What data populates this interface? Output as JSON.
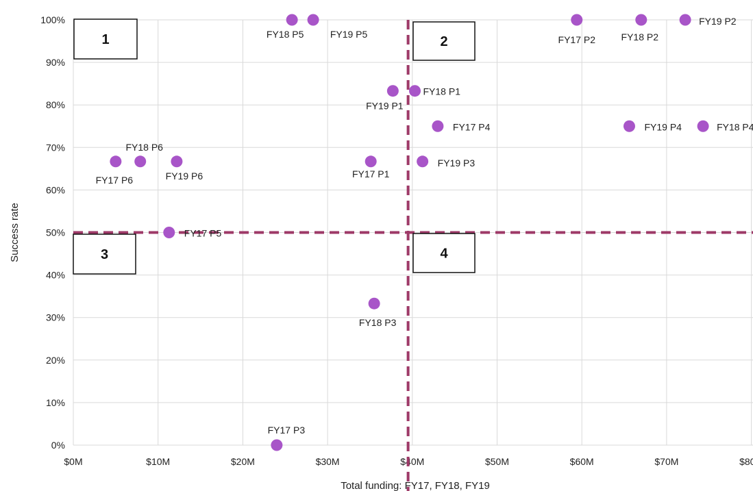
{
  "chart_data": {
    "type": "scatter",
    "xlabel": "Total funding: FY17, FY18, FY19",
    "ylabel": "Success rate",
    "xlim": [
      0,
      80
    ],
    "ylim": [
      0,
      100
    ],
    "x_ticks": [
      "$0M",
      "$10M",
      "$20M",
      "$30M",
      "$40M",
      "$50M",
      "$60M",
      "$70M",
      "$80M"
    ],
    "y_ticks": [
      "0%",
      "10%",
      "20%",
      "30%",
      "40%",
      "50%",
      "60%",
      "70%",
      "80%",
      "90%",
      "100%"
    ],
    "grid": true,
    "marker_color": "#a855c8",
    "divider_color": "#9e3a68",
    "divider_x": 39.5,
    "divider_y": 50,
    "points": [
      {
        "label": "FY18 P5",
        "x": 25.8,
        "y": 100
      },
      {
        "label": "FY19 P5",
        "x": 28.3,
        "y": 100
      },
      {
        "label": "FY17 P2",
        "x": 59.4,
        "y": 100
      },
      {
        "label": "FY18 P2",
        "x": 67.0,
        "y": 100
      },
      {
        "label": "FY19 P2",
        "x": 72.2,
        "y": 100
      },
      {
        "label": "FY19 P1",
        "x": 37.7,
        "y": 83.3
      },
      {
        "label": "FY18 P1",
        "x": 40.3,
        "y": 83.3
      },
      {
        "label": "FY17 P4",
        "x": 43.0,
        "y": 75
      },
      {
        "label": "FY19 P4",
        "x": 65.6,
        "y": 75
      },
      {
        "label": "FY18 P4",
        "x": 74.3,
        "y": 75
      },
      {
        "label": "FY17 P6",
        "x": 5.0,
        "y": 66.7
      },
      {
        "label": "FY18 P6",
        "x": 7.9,
        "y": 66.7
      },
      {
        "label": "FY19 P6",
        "x": 12.2,
        "y": 66.7
      },
      {
        "label": "FY17 P1",
        "x": 35.1,
        "y": 66.7
      },
      {
        "label": "FY19 P3",
        "x": 41.2,
        "y": 66.7
      },
      {
        "label": "FY17 P5",
        "x": 11.3,
        "y": 50
      },
      {
        "label": "FY18 P3",
        "x": 35.5,
        "y": 33.3
      },
      {
        "label": "FY17 P3",
        "x": 24.0,
        "y": 0
      }
    ],
    "quadrants": [
      "1",
      "2",
      "3",
      "4"
    ]
  }
}
